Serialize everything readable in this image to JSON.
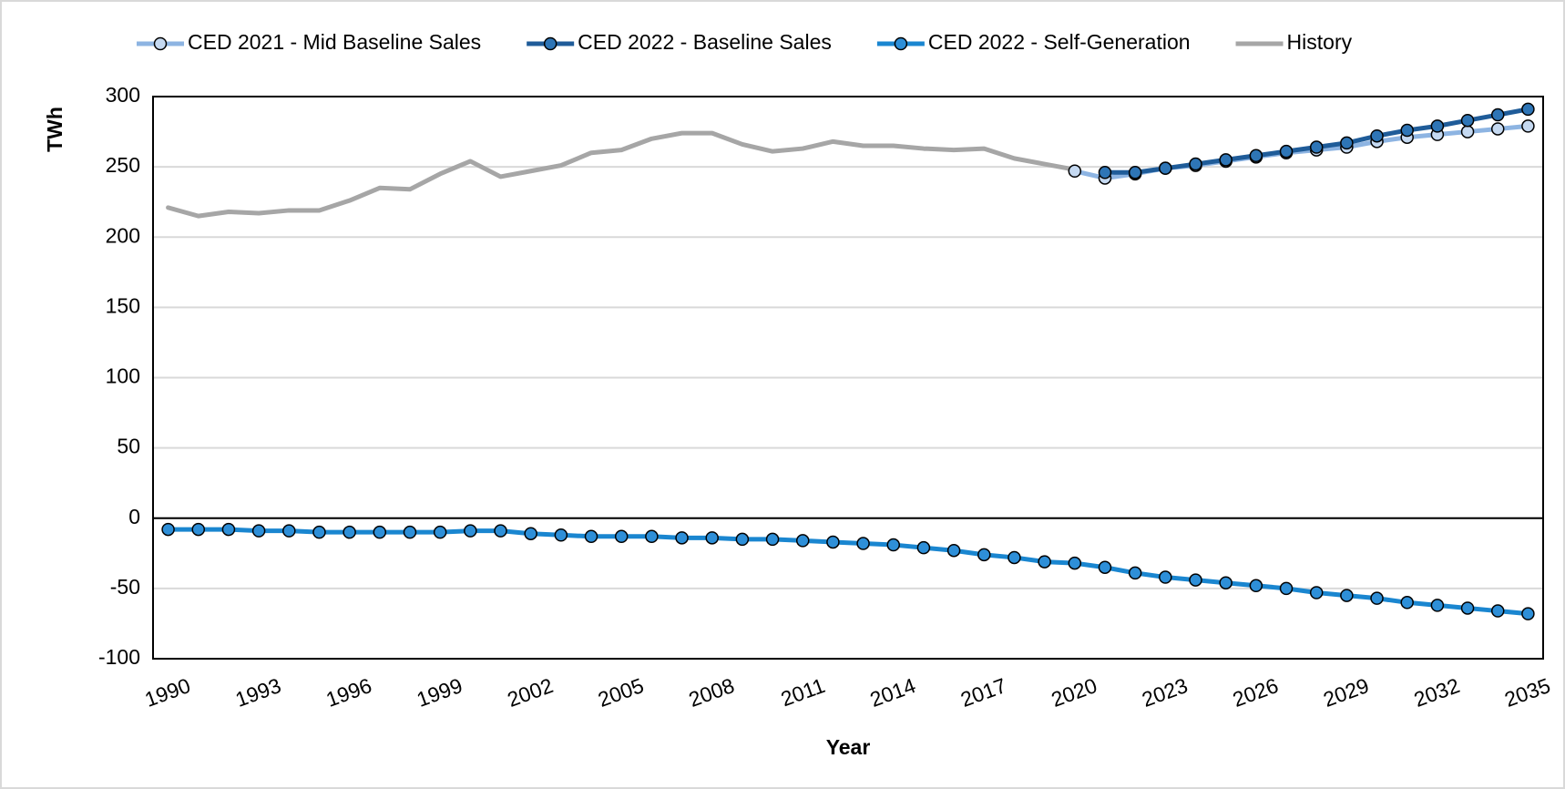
{
  "chart_data": {
    "type": "line",
    "y_label": "TWh",
    "x_label": "Year",
    "x": [
      1990,
      1991,
      1992,
      1993,
      1994,
      1995,
      1996,
      1997,
      1998,
      1999,
      2000,
      2001,
      2002,
      2003,
      2004,
      2005,
      2006,
      2007,
      2008,
      2009,
      2010,
      2011,
      2012,
      2013,
      2014,
      2015,
      2016,
      2017,
      2018,
      2019,
      2020,
      2021,
      2022,
      2023,
      2024,
      2025,
      2026,
      2027,
      2028,
      2029,
      2030,
      2031,
      2032,
      2033,
      2034,
      2035
    ],
    "xlim": [
      1989.5,
      2035.5
    ],
    "xticks": [
      1990,
      1993,
      1996,
      1999,
      2002,
      2005,
      2008,
      2011,
      2014,
      2017,
      2020,
      2023,
      2026,
      2029,
      2032,
      2035
    ],
    "ylim": [
      -100,
      300
    ],
    "yticks": [
      -100,
      -50,
      0,
      50,
      100,
      150,
      200,
      250,
      300
    ],
    "grid": true,
    "legend": "top",
    "series": [
      {
        "name": "CED 2021 - Mid Baseline Sales",
        "color": "#8db4e2",
        "marker_color": "#c5d9f1",
        "marker": true,
        "values": [
          null,
          null,
          null,
          null,
          null,
          null,
          null,
          null,
          null,
          null,
          null,
          null,
          null,
          null,
          null,
          null,
          null,
          null,
          null,
          null,
          null,
          null,
          null,
          null,
          null,
          null,
          null,
          null,
          null,
          null,
          247,
          242,
          245,
          249,
          251,
          254,
          257,
          260,
          262,
          264,
          268,
          271,
          273,
          275,
          277,
          279
        ]
      },
      {
        "name": "CED 2022 - Baseline Sales",
        "color": "#1f5c99",
        "marker_color": "#2e75b6",
        "marker": true,
        "values": [
          null,
          null,
          null,
          null,
          null,
          null,
          null,
          null,
          null,
          null,
          null,
          null,
          null,
          null,
          null,
          null,
          null,
          null,
          null,
          null,
          null,
          null,
          null,
          null,
          null,
          null,
          null,
          null,
          null,
          null,
          null,
          246,
          246,
          249,
          252,
          255,
          258,
          261,
          264,
          267,
          272,
          276,
          279,
          283,
          287,
          291
        ]
      },
      {
        "name": "CED 2022 - Self-Generation",
        "color": "#1a86d0",
        "marker_color": "#2e8fd8",
        "marker": true,
        "values": [
          -8,
          -8,
          -8,
          -9,
          -9,
          -10,
          -10,
          -10,
          -10,
          -10,
          -9,
          -9,
          -11,
          -12,
          -13,
          -13,
          -13,
          -14,
          -14,
          -15,
          -15,
          -16,
          -17,
          -18,
          -19,
          -21,
          -23,
          -26,
          -28,
          -31,
          -32,
          -35,
          -39,
          -42,
          -44,
          -46,
          -48,
          -50,
          -53,
          -55,
          -57,
          -60,
          -62,
          -64,
          -66,
          -68
        ]
      },
      {
        "name": "History",
        "color": "#a6a6a6",
        "marker": false,
        "values": [
          221,
          215,
          218,
          217,
          219,
          219,
          226,
          235,
          234,
          245,
          254,
          243,
          247,
          251,
          260,
          262,
          270,
          274,
          274,
          266,
          261,
          263,
          268,
          265,
          265,
          263,
          262,
          263,
          256,
          252,
          248,
          null,
          null,
          null,
          null,
          null,
          null,
          null,
          null,
          null,
          null,
          null,
          null,
          null,
          null,
          null
        ]
      }
    ]
  }
}
